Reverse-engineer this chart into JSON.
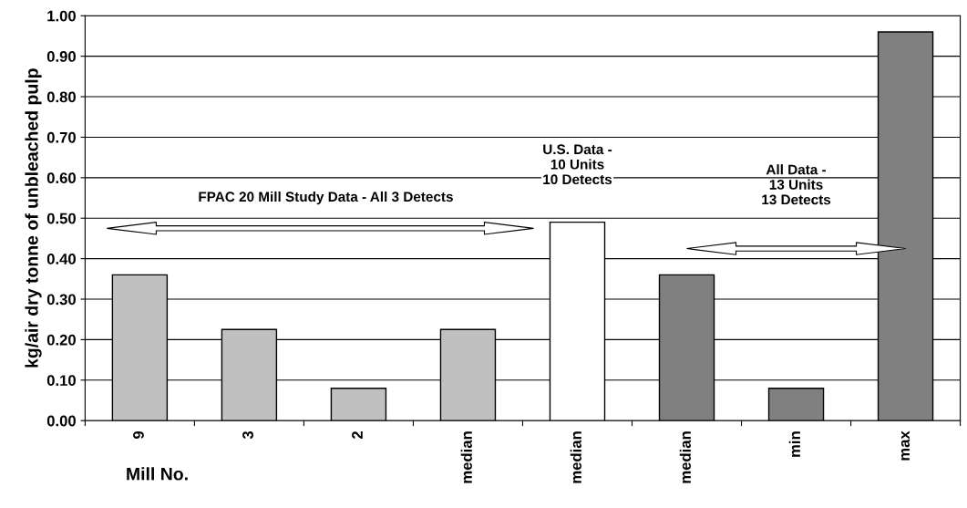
{
  "chart_data": {
    "type": "bar",
    "ylabel": "kg/air dry tonne of unbleached pulp",
    "xlabel": "Mill No.",
    "categories": [
      "9",
      "3",
      "2",
      "median",
      "median",
      "median",
      "min",
      "max"
    ],
    "values": [
      0.36,
      0.225,
      0.08,
      0.225,
      0.49,
      0.36,
      0.08,
      0.96
    ],
    "colors": [
      "#c0c0c0",
      "#c0c0c0",
      "#c0c0c0",
      "#c0c0c0",
      "#ffffff",
      "#808080",
      "#808080",
      "#808080"
    ],
    "ylim": [
      0,
      1.0
    ],
    "yticks": [
      {
        "value": 0,
        "label": "0.00"
      },
      {
        "value": 0.1,
        "label": "0.10"
      },
      {
        "value": 0.2,
        "label": "0.20"
      },
      {
        "value": 0.3,
        "label": "0.30"
      },
      {
        "value": 0.4,
        "label": "0.40"
      },
      {
        "value": 0.5,
        "label": "0.50"
      },
      {
        "value": 0.6,
        "label": "0.60"
      },
      {
        "value": 0.7,
        "label": "0.70"
      },
      {
        "value": 0.8,
        "label": "0.80"
      },
      {
        "value": 0.9,
        "label": "0.90"
      },
      {
        "value": 1.0,
        "label": "1.00"
      }
    ],
    "grid": "y",
    "annotations": [
      "FPAC 20 Mill Study Data - All 3 Detects",
      "U.S. Data -\n10 Units\n10 Detects",
      "All Data -\n13 Units\n13 Detects"
    ]
  }
}
